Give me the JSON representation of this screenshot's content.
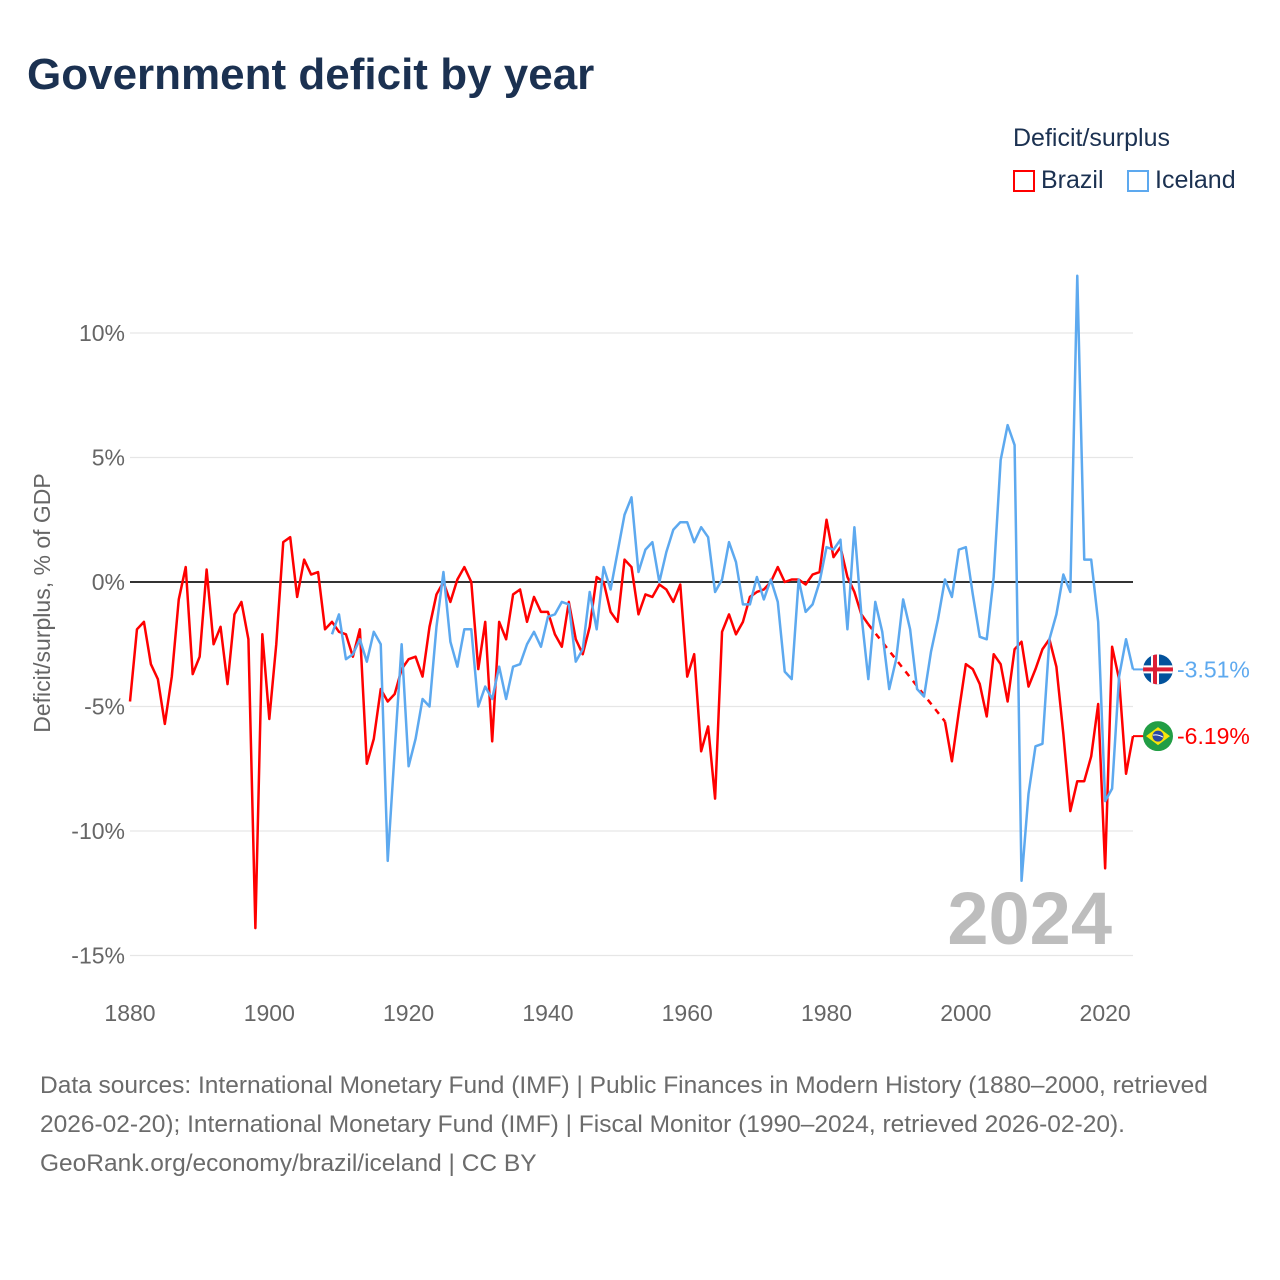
{
  "title": "Government deficit by year",
  "legend": {
    "title": "Deficit/surplus",
    "items": [
      {
        "label": "Brazil",
        "color": "#ff0000"
      },
      {
        "label": "Iceland",
        "color": "#5da9ef"
      }
    ]
  },
  "footer": {
    "sources": "Data sources: International Monetary Fund (IMF) | Public Finances in Modern History (1880–2000, retrieved 2026-02-20); International Monetary Fund (IMF) | Fiscal Monitor (1990–2024, retrieved 2026-02-20).",
    "credit": "GeoRank.org/economy/brazil/iceland | CC BY"
  },
  "chart_data": {
    "type": "line",
    "title": "Government deficit by year",
    "xlabel": "",
    "ylabel": "Deficit/surplus, % of GDP",
    "xlim": [
      1880,
      2024
    ],
    "ylim": [
      -15,
      12.5
    ],
    "x_ticks": [
      1880,
      1900,
      1920,
      1940,
      1960,
      1980,
      2000,
      2020
    ],
    "x_tick_labels": [
      "1880",
      "1900",
      "1920",
      "1940",
      "1960",
      "1980",
      "2000",
      "2020"
    ],
    "y_ticks": [
      10,
      5,
      0,
      -5,
      -10,
      -15
    ],
    "y_tick_labels": [
      "10%",
      "5%",
      "0%",
      "-5%",
      "-10%",
      "-15%"
    ],
    "grid": true,
    "legend_position": "top-right",
    "watermark_year": "2024",
    "series": [
      {
        "name": "Brazil",
        "color": "#ff0000",
        "start_year": 1880,
        "end_label": "-6.19%",
        "flag": "brazil-flag",
        "values": [
          -4.8,
          -1.9,
          -1.6,
          -3.3,
          -3.9,
          -5.7,
          -3.8,
          -0.7,
          0.6,
          -3.7,
          -3.0,
          0.5,
          -2.5,
          -1.8,
          -4.1,
          -1.3,
          -0.8,
          -2.3,
          -13.9,
          -2.1,
          -5.5,
          -2.5,
          1.6,
          1.8,
          -0.6,
          0.9,
          0.3,
          0.4,
          -1.9,
          -1.6,
          -2.0,
          -2.1,
          -3.0,
          -1.9,
          -7.3,
          -6.3,
          -4.3,
          -4.8,
          -4.5,
          -3.5,
          -3.1,
          -3.0,
          -3.8,
          -1.8,
          -0.5,
          0.0,
          -0.8,
          0.1,
          0.6,
          0.0,
          -3.5,
          -1.6,
          -6.4,
          -1.6,
          -2.3,
          -0.5,
          -0.3,
          -1.6,
          -0.6,
          -1.2,
          -1.2,
          -2.1,
          -2.6,
          -0.8,
          -2.3,
          -2.9,
          -1.8,
          0.2,
          0.0,
          -1.2,
          -1.6,
          0.9,
          0.6,
          -1.3,
          -0.5,
          -0.6,
          -0.1,
          -0.3,
          -0.8,
          -0.1,
          -3.8,
          -2.9,
          -6.8,
          -5.8,
          -8.7,
          -2.0,
          -1.3,
          -2.1,
          -1.6,
          -0.6,
          -0.4,
          -0.3,
          0.0,
          0.6,
          0.0,
          0.1,
          0.1,
          -0.1,
          0.3,
          0.4,
          2.5,
          1.0,
          1.4,
          0.2,
          -0.4,
          -1.3,
          -1.7,
          null,
          null,
          null,
          null,
          null,
          null,
          null,
          null,
          null,
          null,
          -5.6,
          -7.2,
          -5.2,
          -3.3,
          -3.5,
          -4.1,
          -5.4,
          -2.9,
          -3.3,
          -4.8,
          -2.7,
          -2.4,
          -4.2,
          -3.5,
          -2.7,
          -2.3,
          -3.4,
          -6.1,
          -9.2,
          -8.0,
          -8.0,
          -7.0,
          -4.9,
          -11.5,
          -2.6,
          -3.9,
          -7.7,
          -6.19
        ]
      },
      {
        "name": "Iceland",
        "color": "#5da9ef",
        "start_year": 1909,
        "end_label": "-3.51%",
        "flag": "iceland-flag",
        "values": [
          -2.1,
          -1.3,
          -3.1,
          -2.9,
          -2.3,
          -3.2,
          -2.0,
          -2.5,
          -11.2,
          -6.8,
          -2.5,
          -7.4,
          -6.3,
          -4.7,
          -5.0,
          -1.8,
          0.4,
          -2.4,
          -3.4,
          -1.9,
          -1.9,
          -5.0,
          -4.2,
          -4.7,
          -3.4,
          -4.7,
          -3.4,
          -3.3,
          -2.5,
          -2.0,
          -2.6,
          -1.4,
          -1.3,
          -0.8,
          -0.9,
          -3.2,
          -2.7,
          -0.4,
          -1.9,
          0.6,
          -0.3,
          1.2,
          2.7,
          3.4,
          0.4,
          1.3,
          1.6,
          0.0,
          1.2,
          2.1,
          2.4,
          2.4,
          1.6,
          2.2,
          1.8,
          -0.4,
          0.1,
          1.6,
          0.8,
          -0.9,
          -0.9,
          0.2,
          -0.7,
          0.1,
          -0.8,
          -3.6,
          -3.9,
          0.1,
          -1.2,
          -0.9,
          0.0,
          1.4,
          1.3,
          1.7,
          -1.9,
          2.2,
          -1.3,
          -3.9,
          -0.8,
          -2.0,
          -4.3,
          -3.1,
          -0.7,
          -1.9,
          -4.3,
          -4.6,
          -2.8,
          -1.5,
          0.1,
          -0.6,
          1.3,
          1.4,
          -0.5,
          -2.2,
          -2.3,
          0.2,
          4.9,
          6.3,
          5.5,
          -12.0,
          -8.5,
          -6.6,
          -6.5,
          -2.3,
          -1.3,
          0.3,
          -0.4,
          12.3,
          0.9,
          0.9,
          -1.6,
          -8.8,
          -8.3,
          -3.8,
          -2.3,
          -3.51
        ]
      }
    ]
  }
}
